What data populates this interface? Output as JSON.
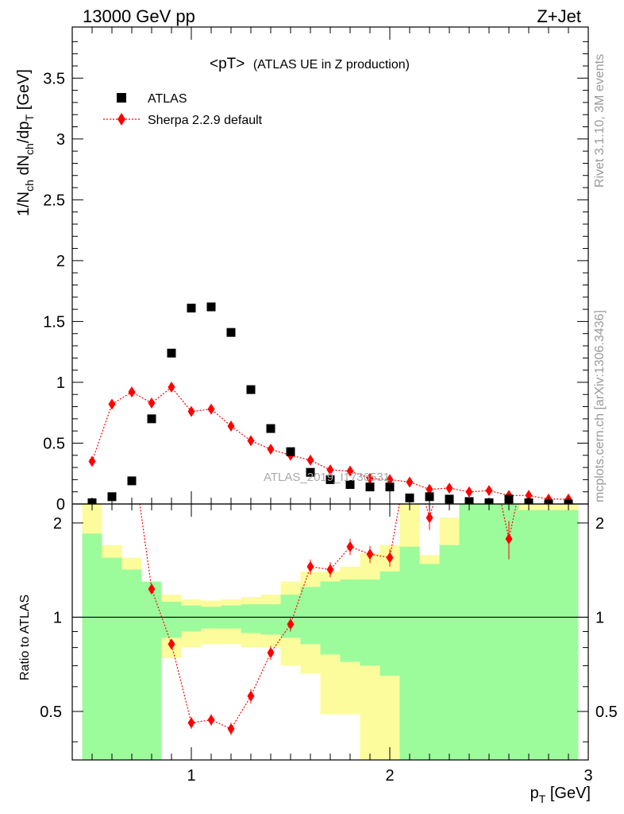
{
  "header": {
    "left": "13000 GeV pp",
    "right": "Z+Jet"
  },
  "side_labels": {
    "rivet": "Rivet 3.1.10,  3M events",
    "mcplots": "mcplots.cern.ch [arXiv:1306.3436]"
  },
  "watermark": "ATLAS_2019_I1736531",
  "legend": {
    "atlas": "ATLAS",
    "sherpa": "Sherpa 2.2.9 default"
  },
  "colors": {
    "data": "#000000",
    "mc": "#ff0000",
    "band_inner": "#9cfc9c",
    "band_outer": "#fcfc9c"
  },
  "chart_data": [
    {
      "type": "scatter",
      "title": "<pT>",
      "subtitle": "(ATLAS UE in Z production)",
      "ylabel": "1/N_ch dN_ch/dp_T [GeV]",
      "xlim": [
        0.4,
        3.0
      ],
      "ylim": [
        0,
        3.92
      ],
      "yticks": [
        "0",
        "0.5",
        "1",
        "1.5",
        "2",
        "2.5",
        "3",
        "3.5"
      ],
      "legend_position": "top-left",
      "x": [
        0.5,
        0.6,
        0.7,
        0.8,
        0.9,
        1.0,
        1.1,
        1.2,
        1.3,
        1.4,
        1.5,
        1.6,
        1.7,
        1.8,
        1.9,
        2.0,
        2.1,
        2.2,
        2.3,
        2.4,
        2.5,
        2.6,
        2.7,
        2.8,
        2.9
      ],
      "series": [
        {
          "name": "ATLAS",
          "marker": "square",
          "values": [
            0.01,
            0.06,
            0.19,
            0.7,
            1.24,
            1.61,
            1.62,
            1.41,
            0.94,
            0.62,
            0.43,
            0.26,
            0.2,
            0.16,
            0.14,
            0.14,
            0.05,
            0.06,
            0.04,
            0.02,
            0.01,
            0.04,
            0.01,
            0.0,
            0.0
          ]
        },
        {
          "name": "Sherpa 2.2.9 default",
          "marker": "diamond",
          "line": "dotted",
          "values": [
            0.35,
            0.82,
            0.92,
            0.83,
            0.96,
            0.76,
            0.78,
            0.64,
            0.52,
            0.45,
            0.4,
            0.36,
            0.28,
            0.27,
            0.21,
            0.2,
            0.18,
            0.12,
            0.13,
            0.1,
            0.11,
            0.07,
            0.07,
            0.04,
            0.04
          ],
          "errors": [
            0.0,
            0.02,
            0.03,
            0.03,
            0.04,
            0.03,
            0.03,
            0.03,
            0.02,
            0.02,
            0.02,
            0.02,
            0.02,
            0.02,
            0.02,
            0.02,
            0.02,
            0.02,
            0.02,
            0.02,
            0.02,
            0.02,
            0.02,
            0.02,
            0.02
          ]
        }
      ]
    },
    {
      "type": "line",
      "ylabel": "Ratio to ATLAS",
      "xlabel": "p_T [GeV]",
      "xlim": [
        0.4,
        3.0
      ],
      "ylim": [
        0.35,
        2.3
      ],
      "xticks": [
        "1",
        "2",
        "3"
      ],
      "yticks": [
        "0.5",
        "1",
        "2"
      ],
      "bins": [
        0.45,
        0.55,
        0.65,
        0.75,
        0.85,
        0.95,
        1.05,
        1.15,
        1.25,
        1.35,
        1.45,
        1.55,
        1.65,
        1.75,
        1.85,
        1.95,
        2.05,
        2.15,
        2.25,
        2.35,
        2.45,
        2.55,
        2.65,
        2.75,
        2.85,
        2.95
      ],
      "bands": {
        "inner_upper": [
          1.85,
          1.55,
          1.42,
          1.3,
          1.12,
          1.09,
          1.08,
          1.09,
          1.1,
          1.1,
          1.18,
          1.25,
          1.3,
          1.32,
          1.32,
          1.4,
          1.68,
          1.48,
          1.7,
          2.3,
          2.3,
          2.3,
          2.2,
          2.2,
          2.2
        ],
        "inner_lower": [
          0.35,
          0.35,
          0.35,
          0.35,
          0.86,
          0.9,
          0.92,
          0.92,
          0.89,
          0.88,
          0.86,
          0.82,
          0.76,
          0.72,
          0.7,
          0.65,
          0.35,
          0.35,
          0.35,
          0.35,
          0.35,
          0.35,
          0.35,
          0.35,
          0.35
        ],
        "outer_upper": [
          2.3,
          1.7,
          1.55,
          1.3,
          1.18,
          1.14,
          1.13,
          1.14,
          1.16,
          1.18,
          1.3,
          1.4,
          1.4,
          1.45,
          1.6,
          1.7,
          2.3,
          1.58,
          2.08,
          2.3,
          2.3,
          1.7,
          2.3,
          2.3,
          2.3
        ],
        "outer_lower": [
          0.35,
          0.6,
          0.5,
          0.79,
          0.74,
          0.8,
          0.82,
          0.82,
          0.8,
          0.8,
          0.7,
          0.66,
          0.49,
          0.49,
          0.35,
          0.35,
          0.35,
          0.4,
          0.35,
          0.35,
          0.35,
          0.35,
          0.35,
          0.35,
          0.35
        ]
      },
      "reference_line": 1,
      "series": [
        {
          "name": "Sherpa 2.2.9 default",
          "marker": "diamond",
          "x": [
            0.8,
            0.9,
            1.0,
            1.1,
            1.2,
            1.3,
            1.4,
            1.5,
            1.6,
            1.7,
            1.8,
            1.9,
            2.0,
            2.2,
            2.6
          ],
          "values": [
            1.23,
            0.82,
            0.46,
            0.47,
            0.44,
            0.56,
            0.77,
            0.95,
            1.45,
            1.42,
            1.68,
            1.59,
            1.55,
            2.08,
            1.78
          ],
          "errors": [
            0.03,
            0.03,
            0.02,
            0.02,
            0.02,
            0.03,
            0.04,
            0.05,
            0.08,
            0.08,
            0.1,
            0.1,
            0.1,
            0.18,
            0.25
          ]
        }
      ]
    }
  ]
}
